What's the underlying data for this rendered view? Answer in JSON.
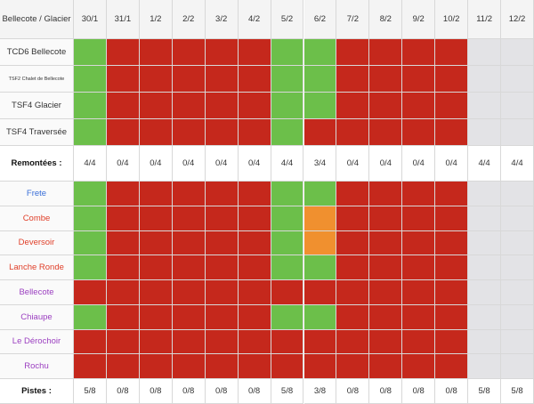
{
  "header": {
    "corner": "Bellecote / Glacier",
    "dates": [
      "30/1",
      "31/1",
      "1/2",
      "2/2",
      "3/2",
      "4/2",
      "5/2",
      "6/2",
      "7/2",
      "8/2",
      "9/2",
      "10/2",
      "11/2",
      "12/2"
    ]
  },
  "status_colors": {
    "G": "#6cbf4a",
    "R": "#c5281c",
    "O": "#f0902f",
    "-": "#e3e3e6"
  },
  "lifts": [
    {
      "name": "TCD6 Bellecote",
      "status": [
        "G",
        "R",
        "R",
        "R",
        "R",
        "R",
        "G",
        "G",
        "R",
        "R",
        "R",
        "R",
        "-",
        "-"
      ]
    },
    {
      "name": "TSF2 Chalet de Bellecote",
      "small": true,
      "status": [
        "G",
        "R",
        "R",
        "R",
        "R",
        "R",
        "G",
        "G",
        "R",
        "R",
        "R",
        "R",
        "-",
        "-"
      ]
    },
    {
      "name": "TSF4 Glacier",
      "status": [
        "G",
        "R",
        "R",
        "R",
        "R",
        "R",
        "G",
        "G",
        "R",
        "R",
        "R",
        "R",
        "-",
        "-"
      ]
    },
    {
      "name": "TSF4 Traversée",
      "status": [
        "G",
        "R",
        "R",
        "R",
        "R",
        "R",
        "G",
        "R",
        "R",
        "R",
        "R",
        "R",
        "-",
        "-"
      ]
    }
  ],
  "lifts_summary": {
    "label": "Remontées :",
    "values": [
      "4/4",
      "0/4",
      "0/4",
      "0/4",
      "0/4",
      "0/4",
      "4/4",
      "3/4",
      "0/4",
      "0/4",
      "0/4",
      "0/4",
      "4/4",
      "4/4"
    ]
  },
  "trails": [
    {
      "name": "Frete",
      "color": "#3a6fd8",
      "status": [
        "G",
        "R",
        "R",
        "R",
        "R",
        "R",
        "G",
        "G",
        "R",
        "R",
        "R",
        "R",
        "-",
        "-"
      ]
    },
    {
      "name": "Combe",
      "color": "#e0402a",
      "status": [
        "G",
        "R",
        "R",
        "R",
        "R",
        "R",
        "G",
        "O",
        "R",
        "R",
        "R",
        "R",
        "-",
        "-"
      ]
    },
    {
      "name": "Deversoir",
      "color": "#e0402a",
      "status": [
        "G",
        "R",
        "R",
        "R",
        "R",
        "R",
        "G",
        "O",
        "R",
        "R",
        "R",
        "R",
        "-",
        "-"
      ]
    },
    {
      "name": "Lanche Ronde",
      "color": "#e0402a",
      "status": [
        "G",
        "R",
        "R",
        "R",
        "R",
        "R",
        "G",
        "G",
        "R",
        "R",
        "R",
        "R",
        "-",
        "-"
      ]
    },
    {
      "name": "Bellecote",
      "color": "#9b3fc0",
      "status": [
        "R",
        "R",
        "R",
        "R",
        "R",
        "R",
        "R",
        "R",
        "R",
        "R",
        "R",
        "R",
        "-",
        "-"
      ]
    },
    {
      "name": "Chiaupe",
      "color": "#9b3fc0",
      "status": [
        "G",
        "R",
        "R",
        "R",
        "R",
        "R",
        "G",
        "G",
        "R",
        "R",
        "R",
        "R",
        "-",
        "-"
      ]
    },
    {
      "name": "Le Dérochoir",
      "color": "#9b3fc0",
      "status": [
        "R",
        "R",
        "R",
        "R",
        "R",
        "R",
        "R",
        "R",
        "R",
        "R",
        "R",
        "R",
        "-",
        "-"
      ]
    },
    {
      "name": "Rochu",
      "color": "#9b3fc0",
      "status": [
        "R",
        "R",
        "R",
        "R",
        "R",
        "R",
        "R",
        "R",
        "R",
        "R",
        "R",
        "R",
        "-",
        "-"
      ]
    }
  ],
  "trails_summary": {
    "label": "Pistes :",
    "values": [
      "5/8",
      "0/8",
      "0/8",
      "0/8",
      "0/8",
      "0/8",
      "5/8",
      "3/8",
      "0/8",
      "0/8",
      "0/8",
      "0/8",
      "5/8",
      "5/8"
    ]
  }
}
